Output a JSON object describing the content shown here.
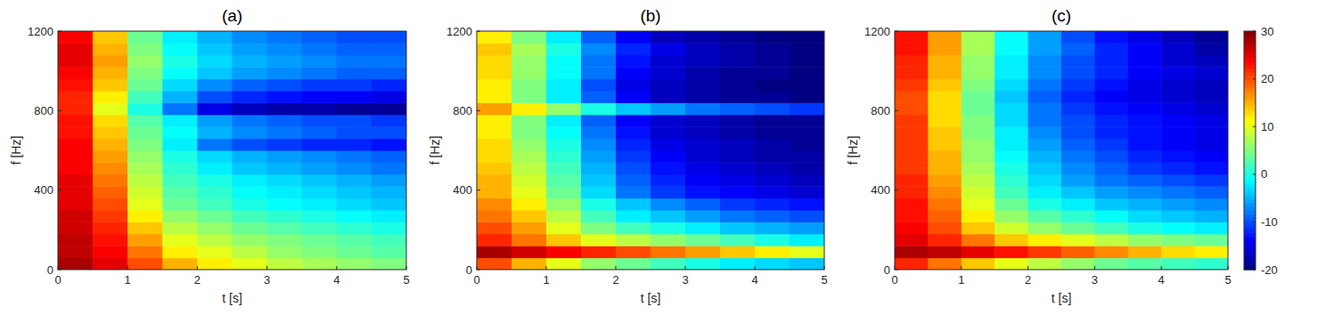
{
  "chart_data": [
    {
      "type": "heatmap",
      "title": "(a)",
      "x_label": "t [s]",
      "y_label": "f [Hz]",
      "xlim": [
        0,
        5
      ],
      "ylim": [
        0,
        1200
      ],
      "xticks": [
        0,
        1,
        2,
        3,
        4,
        5
      ],
      "yticks": [
        0,
        400,
        800,
        1200
      ],
      "color_range": [
        -20,
        30
      ],
      "x": [
        0.25,
        0.75,
        1.25,
        1.75,
        2.25,
        2.75,
        3.25,
        3.75,
        4.25,
        4.75
      ],
      "y": [
        30,
        90,
        150,
        210,
        270,
        330,
        390,
        450,
        510,
        570,
        630,
        690,
        750,
        810,
        870,
        930,
        990,
        1050,
        1110,
        1170
      ],
      "values": [
        [
          28,
          25,
          20,
          15,
          12,
          10,
          8,
          7,
          6,
          5
        ],
        [
          27,
          24,
          18,
          12,
          10,
          8,
          6,
          5,
          4,
          3
        ],
        [
          27,
          23,
          16,
          10,
          8,
          6,
          5,
          4,
          3,
          2
        ],
        [
          26,
          22,
          14,
          8,
          6,
          4,
          3,
          2,
          1,
          0
        ],
        [
          26,
          21,
          12,
          6,
          4,
          2,
          1,
          0,
          -1,
          -2
        ],
        [
          25,
          20,
          10,
          4,
          2,
          0,
          -1,
          -2,
          -3,
          -4
        ],
        [
          25,
          19,
          9,
          3,
          1,
          -1,
          -2,
          -3,
          -4,
          -5
        ],
        [
          25,
          18,
          8,
          2,
          0,
          -2,
          -3,
          -4,
          -5,
          -6
        ],
        [
          24,
          17,
          7,
          1,
          -2,
          -4,
          -5,
          -6,
          -7,
          -8
        ],
        [
          24,
          16,
          6,
          0,
          -3,
          -5,
          -6,
          -7,
          -8,
          -9
        ],
        [
          24,
          15,
          5,
          -2,
          -8,
          -10,
          -11,
          -12,
          -12,
          -13
        ],
        [
          23,
          14,
          4,
          -1,
          -5,
          -7,
          -8,
          -9,
          -10,
          -10
        ],
        [
          23,
          13,
          3,
          -2,
          -6,
          -8,
          -9,
          -10,
          -10,
          -11
        ],
        [
          22,
          10,
          0,
          -8,
          -15,
          -17,
          -18,
          -18,
          -19,
          -19
        ],
        [
          22,
          12,
          2,
          -5,
          -10,
          -12,
          -13,
          -14,
          -14,
          -15
        ],
        [
          23,
          14,
          4,
          -3,
          -7,
          -9,
          -10,
          -11,
          -11,
          -12
        ],
        [
          24,
          15,
          5,
          -1,
          -4,
          -6,
          -7,
          -8,
          -9,
          -9
        ],
        [
          25,
          16,
          6,
          0,
          -3,
          -5,
          -6,
          -7,
          -8,
          -8
        ],
        [
          25,
          15,
          5,
          -1,
          -4,
          -6,
          -7,
          -8,
          -9,
          -9
        ],
        [
          24,
          14,
          4,
          -2,
          -5,
          -7,
          -8,
          -9,
          -10,
          -10
        ]
      ]
    },
    {
      "type": "heatmap",
      "title": "(b)",
      "x_label": "t [s]",
      "y_label": "f [Hz]",
      "xlim": [
        0,
        5
      ],
      "ylim": [
        0,
        1200
      ],
      "xticks": [
        0,
        1,
        2,
        3,
        4,
        5
      ],
      "yticks": [
        0,
        400,
        800,
        1200
      ],
      "color_range": [
        -20,
        30
      ],
      "x": [
        0.25,
        0.75,
        1.25,
        1.75,
        2.25,
        2.75,
        3.25,
        3.75,
        4.25,
        4.75
      ],
      "y": [
        30,
        90,
        150,
        210,
        270,
        330,
        390,
        450,
        510,
        570,
        630,
        690,
        750,
        810,
        870,
        930,
        990,
        1050,
        1110,
        1170
      ],
      "values": [
        [
          20,
          15,
          10,
          6,
          4,
          2,
          0,
          -2,
          -3,
          -4
        ],
        [
          28,
          26,
          24,
          22,
          20,
          18,
          16,
          14,
          12,
          10
        ],
        [
          22,
          18,
          14,
          10,
          8,
          6,
          4,
          2,
          0,
          -2
        ],
        [
          20,
          16,
          10,
          5,
          2,
          0,
          -2,
          -4,
          -5,
          -6
        ],
        [
          18,
          14,
          8,
          2,
          -2,
          -4,
          -6,
          -8,
          -9,
          -10
        ],
        [
          17,
          12,
          6,
          0,
          -4,
          -7,
          -9,
          -11,
          -12,
          -13
        ],
        [
          15,
          10,
          4,
          -3,
          -8,
          -11,
          -13,
          -14,
          -15,
          -16
        ],
        [
          15,
          9,
          3,
          -4,
          -9,
          -12,
          -14,
          -15,
          -16,
          -17
        ],
        [
          14,
          8,
          2,
          -5,
          -10,
          -13,
          -15,
          -16,
          -17,
          -18
        ],
        [
          13,
          7,
          1,
          -6,
          -11,
          -14,
          -16,
          -17,
          -18,
          -18
        ],
        [
          13,
          6,
          0,
          -7,
          -12,
          -15,
          -16,
          -17,
          -18,
          -19
        ],
        [
          12,
          5,
          -1,
          -8,
          -13,
          -16,
          -17,
          -18,
          -19,
          -19
        ],
        [
          12,
          5,
          -2,
          -9,
          -14,
          -16,
          -17,
          -18,
          -19,
          -19
        ],
        [
          16,
          12,
          6,
          0,
          -4,
          -6,
          -8,
          -9,
          -10,
          -11
        ],
        [
          12,
          5,
          -2,
          -9,
          -14,
          -17,
          -18,
          -19,
          -19,
          -20
        ],
        [
          12,
          5,
          -2,
          -10,
          -15,
          -17,
          -18,
          -19,
          -20,
          -20
        ],
        [
          13,
          6,
          -1,
          -8,
          -14,
          -16,
          -18,
          -19,
          -19,
          -20
        ],
        [
          13,
          6,
          -1,
          -8,
          -13,
          -16,
          -17,
          -18,
          -19,
          -20
        ],
        [
          14,
          7,
          0,
          -7,
          -12,
          -15,
          -17,
          -18,
          -19,
          -20
        ],
        [
          12,
          5,
          -2,
          -9,
          -14,
          -17,
          -18,
          -19,
          -20,
          -20
        ]
      ]
    },
    {
      "type": "heatmap",
      "title": "(c)",
      "x_label": "t [s]",
      "y_label": "f [Hz]",
      "xlim": [
        0,
        5
      ],
      "ylim": [
        0,
        1200
      ],
      "xticks": [
        0,
        1,
        2,
        3,
        4,
        5
      ],
      "yticks": [
        0,
        400,
        800,
        1200
      ],
      "color_range": [
        -20,
        30
      ],
      "color_ticks": [
        -20,
        -10,
        0,
        10,
        20,
        30
      ],
      "x": [
        0.25,
        0.75,
        1.25,
        1.75,
        2.25,
        2.75,
        3.25,
        3.75,
        4.25,
        4.75
      ],
      "y": [
        30,
        90,
        150,
        210,
        270,
        330,
        390,
        450,
        510,
        570,
        630,
        690,
        750,
        810,
        870,
        930,
        990,
        1050,
        1110,
        1170
      ],
      "values": [
        [
          22,
          18,
          14,
          10,
          8,
          6,
          4,
          3,
          2,
          1
        ],
        [
          28,
          27,
          25,
          23,
          21,
          19,
          17,
          15,
          13,
          12
        ],
        [
          25,
          22,
          18,
          14,
          12,
          10,
          8,
          6,
          5,
          4
        ],
        [
          24,
          20,
          14,
          9,
          6,
          4,
          2,
          0,
          -1,
          -2
        ],
        [
          23,
          19,
          12,
          6,
          3,
          1,
          -1,
          -3,
          -4,
          -5
        ],
        [
          23,
          18,
          10,
          4,
          0,
          -2,
          -4,
          -5,
          -6,
          -7
        ],
        [
          22,
          17,
          9,
          2,
          -2,
          -4,
          -6,
          -7,
          -8,
          -9
        ],
        [
          22,
          16,
          8,
          1,
          -3,
          -6,
          -8,
          -9,
          -10,
          -11
        ],
        [
          21,
          15,
          7,
          0,
          -4,
          -7,
          -9,
          -11,
          -12,
          -13
        ],
        [
          21,
          15,
          6,
          -1,
          -5,
          -8,
          -10,
          -12,
          -13,
          -14
        ],
        [
          21,
          14,
          6,
          -2,
          -6,
          -9,
          -11,
          -13,
          -14,
          -15
        ],
        [
          21,
          14,
          5,
          -2,
          -7,
          -10,
          -12,
          -13,
          -14,
          -15
        ],
        [
          21,
          13,
          5,
          -3,
          -8,
          -10,
          -12,
          -13,
          -14,
          -15
        ],
        [
          20,
          13,
          4,
          -3,
          -8,
          -11,
          -13,
          -14,
          -15,
          -16
        ],
        [
          20,
          13,
          4,
          -4,
          -9,
          -12,
          -14,
          -15,
          -16,
          -17
        ],
        [
          21,
          14,
          5,
          -3,
          -8,
          -11,
          -13,
          -15,
          -16,
          -17
        ],
        [
          22,
          15,
          6,
          -2,
          -7,
          -10,
          -12,
          -14,
          -15,
          -16
        ],
        [
          22,
          15,
          6,
          -2,
          -7,
          -10,
          -12,
          -14,
          -16,
          -17
        ],
        [
          23,
          16,
          7,
          -1,
          -6,
          -9,
          -12,
          -14,
          -16,
          -18
        ],
        [
          23,
          16,
          7,
          -1,
          -6,
          -10,
          -13,
          -15,
          -17,
          -19
        ]
      ]
    }
  ]
}
